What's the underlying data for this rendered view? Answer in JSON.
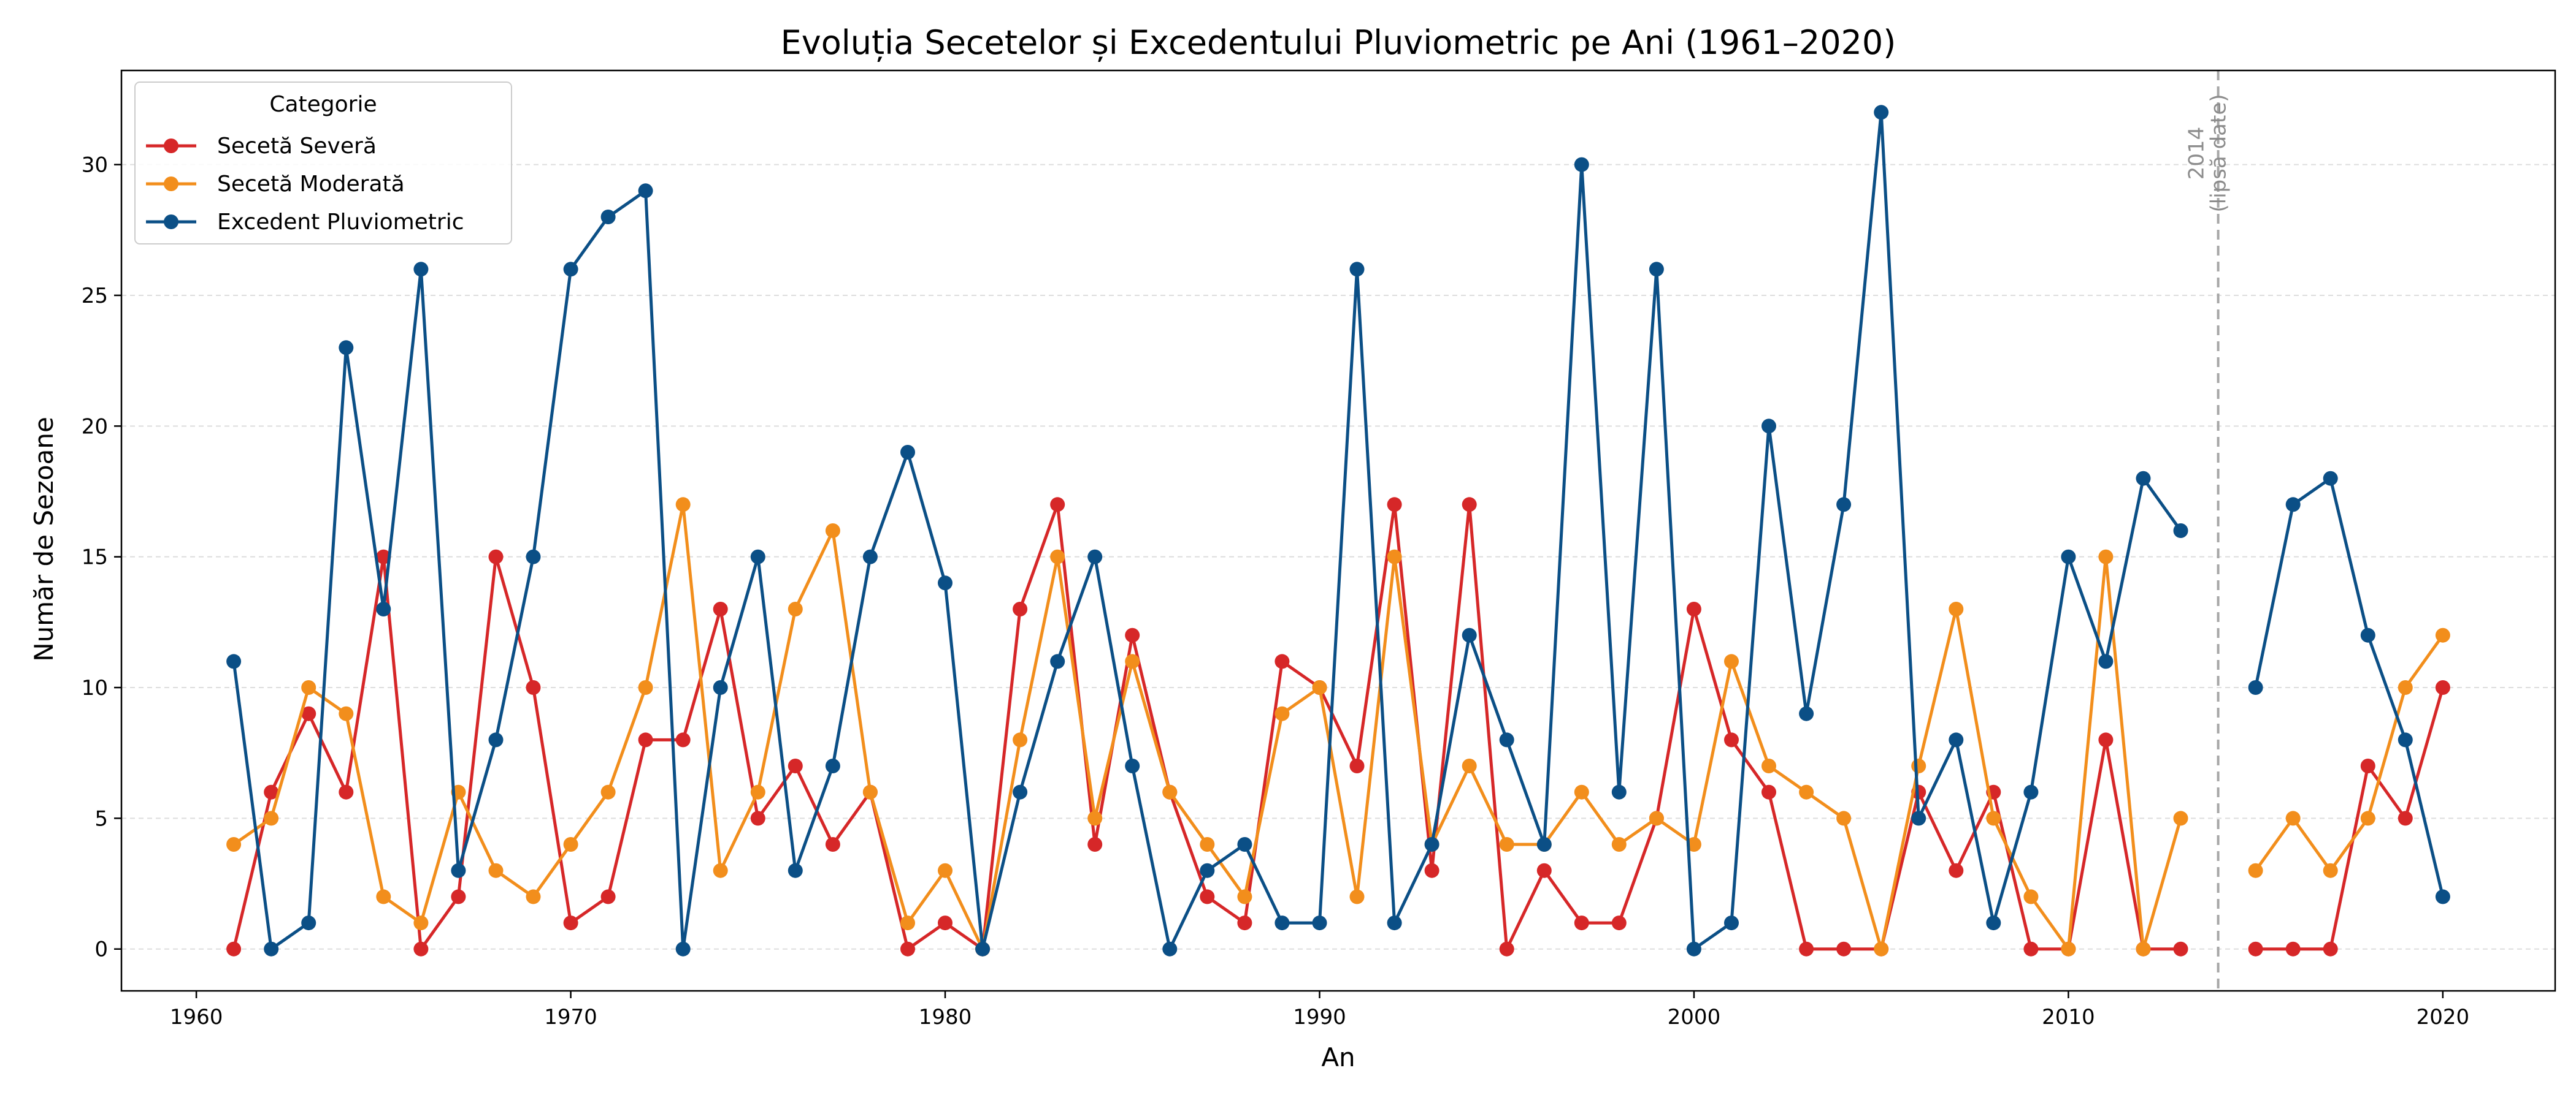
{
  "chart_data": {
    "type": "line",
    "title": "Evoluția Secetelor și Excedentului Pluviometric pe Ani (1961–2020)",
    "xlabel": "An",
    "ylabel": "Număr de Sezoane",
    "xlim": [
      1958,
      2023
    ],
    "ylim": [
      -1.6,
      33.6
    ],
    "xticks": [
      1960,
      1970,
      1980,
      1990,
      2000,
      2010,
      2020
    ],
    "yticks": [
      0,
      5,
      10,
      15,
      20,
      25,
      30
    ],
    "grid": "horizontal dashed",
    "legend": {
      "title": "Categorie",
      "placement": "top-left"
    },
    "x": [
      1961,
      1962,
      1963,
      1964,
      1965,
      1966,
      1967,
      1968,
      1969,
      1970,
      1971,
      1972,
      1973,
      1974,
      1975,
      1976,
      1977,
      1978,
      1979,
      1980,
      1981,
      1982,
      1983,
      1984,
      1985,
      1986,
      1987,
      1988,
      1989,
      1990,
      1991,
      1992,
      1993,
      1994,
      1995,
      1996,
      1997,
      1998,
      1999,
      2000,
      2001,
      2002,
      2003,
      2004,
      2005,
      2006,
      2007,
      2008,
      2009,
      2010,
      2011,
      2012,
      2013,
      2014,
      2015,
      2016,
      2017,
      2018,
      2019,
      2020
    ],
    "series": [
      {
        "name": "Secetă Severă",
        "color": "#d62728",
        "values": [
          0,
          6,
          9,
          6,
          15,
          0,
          2,
          15,
          10,
          1,
          2,
          8,
          8,
          13,
          5,
          7,
          4,
          6,
          0,
          1,
          0,
          13,
          17,
          4,
          12,
          6,
          2,
          1,
          11,
          10,
          7,
          17,
          3,
          17,
          0,
          3,
          1,
          1,
          5,
          13,
          8,
          6,
          0,
          0,
          0,
          6,
          3,
          6,
          0,
          0,
          8,
          0,
          0,
          null,
          0,
          0,
          0,
          7,
          5,
          10
        ]
      },
      {
        "name": "Secetă Moderată",
        "color": "#f28e1c",
        "values": [
          4,
          5,
          10,
          9,
          2,
          1,
          6,
          3,
          2,
          4,
          6,
          10,
          17,
          3,
          6,
          13,
          16,
          6,
          1,
          3,
          0,
          8,
          15,
          5,
          11,
          6,
          4,
          2,
          9,
          10,
          2,
          15,
          4,
          7,
          4,
          4,
          6,
          4,
          5,
          4,
          11,
          7,
          6,
          5,
          0,
          7,
          13,
          5,
          2,
          0,
          15,
          0,
          5,
          null,
          3,
          5,
          3,
          5,
          10,
          12
        ]
      },
      {
        "name": "Excedent Pluviometric",
        "color": "#0b4f86",
        "values": [
          11,
          0,
          1,
          23,
          13,
          26,
          3,
          8,
          15,
          26,
          28,
          29,
          0,
          10,
          15,
          3,
          7,
          15,
          19,
          14,
          0,
          6,
          11,
          15,
          7,
          0,
          3,
          4,
          1,
          1,
          26,
          1,
          4,
          12,
          8,
          4,
          30,
          6,
          26,
          0,
          1,
          20,
          9,
          17,
          32,
          5,
          8,
          1,
          6,
          15,
          11,
          18,
          16,
          null,
          10,
          17,
          18,
          12,
          8,
          2
        ]
      }
    ],
    "annotations": [
      {
        "x": 2014,
        "text_lines": [
          "2014",
          "(lipsă date)"
        ],
        "line_style": "dashed",
        "color": "#a6a6a6"
      }
    ]
  }
}
